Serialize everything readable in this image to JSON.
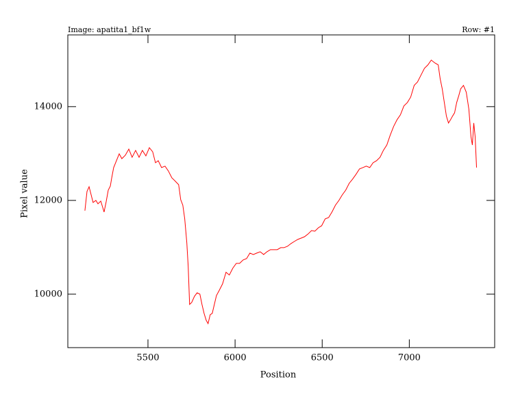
{
  "chart_data": {
    "type": "line",
    "title": "Image: apatita1_bf1w",
    "subtitle": "Row: #1",
    "x_label": "Position",
    "y_label": "Pixel value",
    "x": [
      5138,
      5150,
      5162,
      5174,
      5185,
      5201,
      5213,
      5229,
      5240,
      5248,
      5260,
      5272,
      5284,
      5292,
      5303,
      5319,
      5335,
      5350,
      5370,
      5390,
      5409,
      5429,
      5449,
      5468,
      5488,
      5508,
      5527,
      5543,
      5559,
      5578,
      5598,
      5617,
      5637,
      5657,
      5676,
      5688,
      5700,
      5711,
      5723,
      5731,
      5739,
      5751,
      5767,
      5782,
      5798,
      5810,
      5822,
      5834,
      5845,
      5857,
      5869,
      5881,
      5893,
      5908,
      5928,
      5948,
      5967,
      5987,
      6007,
      6026,
      6046,
      6066,
      6085,
      6105,
      6124,
      6144,
      6164,
      6183,
      6203,
      6222,
      6242,
      6262,
      6281,
      6301,
      6321,
      6340,
      6360,
      6380,
      6399,
      6419,
      6439,
      6458,
      6478,
      6497,
      6517,
      6537,
      6556,
      6576,
      6596,
      6615,
      6635,
      6655,
      6674,
      6694,
      6714,
      6733,
      6753,
      6773,
      6792,
      6812,
      6832,
      6851,
      6871,
      6890,
      6910,
      6930,
      6949,
      6969,
      6989,
      7008,
      7028,
      7047,
      7067,
      7087,
      7107,
      7126,
      7146,
      7166,
      7177,
      7189,
      7201,
      7213,
      7225,
      7237,
      7248,
      7260,
      7272,
      7284,
      7295,
      7311,
      7327,
      7342,
      7354,
      7362,
      7370,
      7378,
      7386
    ],
    "series": [
      {
        "color": "#ff0000",
        "values": [
          11781,
          12190,
          12292,
          12117,
          11956,
          12000,
          11927,
          11985,
          11854,
          11752,
          11971,
          12219,
          12306,
          12482,
          12700,
          12847,
          12993,
          12890,
          12963,
          13095,
          12920,
          13066,
          12920,
          13066,
          12949,
          13124,
          13037,
          12803,
          12847,
          12700,
          12730,
          12628,
          12482,
          12409,
          12336,
          12014,
          11898,
          11606,
          11095,
          10584,
          9781,
          9824,
          9956,
          10029,
          10000,
          9781,
          9591,
          9445,
          9372,
          9562,
          9591,
          9781,
          9971,
          10073,
          10219,
          10467,
          10409,
          10555,
          10657,
          10657,
          10730,
          10759,
          10876,
          10846,
          10876,
          10905,
          10846,
          10905,
          10949,
          10949,
          10949,
          10992,
          10992,
          11022,
          11080,
          11124,
          11168,
          11197,
          11226,
          11284,
          11357,
          11343,
          11416,
          11460,
          11606,
          11635,
          11752,
          11898,
          12000,
          12117,
          12219,
          12365,
          12452,
          12555,
          12671,
          12700,
          12730,
          12700,
          12803,
          12847,
          12920,
          13066,
          13182,
          13387,
          13577,
          13723,
          13825,
          14015,
          14088,
          14204,
          14453,
          14526,
          14672,
          14818,
          14891,
          14993,
          14934,
          14891,
          14599,
          14380,
          14088,
          13796,
          13650,
          13723,
          13796,
          13869,
          14088,
          14234,
          14380,
          14453,
          14307,
          13942,
          13358,
          13182,
          13650,
          13358,
          12700
        ]
      }
    ],
    "xlim": [
      5040,
      7490
    ],
    "ylim": [
      8860,
      15530
    ],
    "xticks": [
      5500,
      6000,
      6500,
      7000
    ],
    "yticks": [
      10000,
      12000,
      14000
    ]
  }
}
